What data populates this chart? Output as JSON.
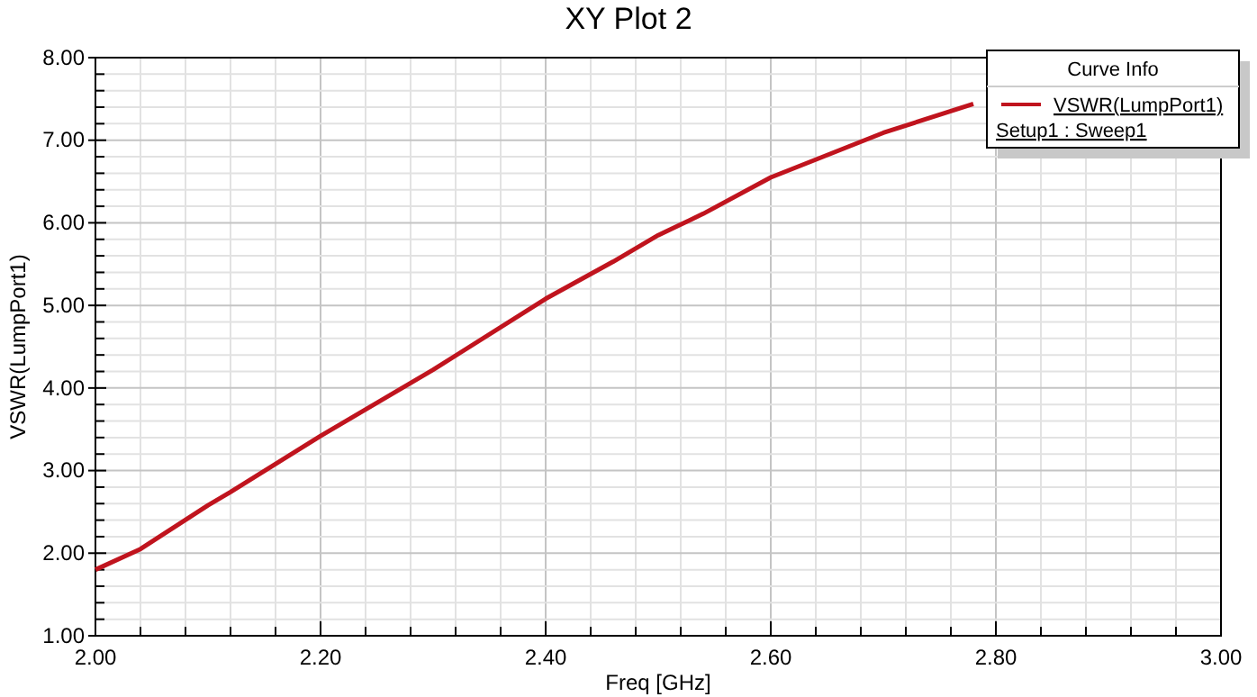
{
  "chart_data": {
    "type": "line",
    "title": "XY Plot 2",
    "xlabel": "Freq [GHz]",
    "ylabel": "VSWR(LumpPort1)",
    "legend_title": "Curve Info",
    "legend": "top right",
    "grid": true,
    "line_style": "solid",
    "marker": "none",
    "x": [
      2.0,
      2.04,
      2.1,
      2.12,
      2.2,
      2.3,
      2.4,
      2.46,
      2.5,
      2.54,
      2.6,
      2.7,
      2.78
    ],
    "annotations": [
      "Setup1 : Sweep1"
    ],
    "series": [
      {
        "name": "VSWR(LumpPort1)",
        "color": "#c0141e",
        "values": [
          1.8,
          2.05,
          2.58,
          2.74,
          3.42,
          4.22,
          5.08,
          5.53,
          5.85,
          6.11,
          6.55,
          7.09,
          7.44
        ]
      }
    ],
    "xlim": [
      2.0,
      3.0
    ],
    "ylim": [
      1.0,
      8.0
    ],
    "xticks": [
      {
        "value": 2.0,
        "label": "2.00"
      },
      {
        "value": 2.04,
        "label": null
      },
      {
        "value": 2.08,
        "label": null
      },
      {
        "value": 2.12,
        "label": null
      },
      {
        "value": 2.16,
        "label": null
      },
      {
        "value": 2.2,
        "label": "2.20"
      },
      {
        "value": 2.24,
        "label": null
      },
      {
        "value": 2.28,
        "label": null
      },
      {
        "value": 2.32,
        "label": null
      },
      {
        "value": 2.36,
        "label": null
      },
      {
        "value": 2.4,
        "label": "2.40"
      },
      {
        "value": 2.44,
        "label": null
      },
      {
        "value": 2.48,
        "label": null
      },
      {
        "value": 2.52,
        "label": null
      },
      {
        "value": 2.56,
        "label": null
      },
      {
        "value": 2.6,
        "label": "2.60"
      },
      {
        "value": 2.64,
        "label": null
      },
      {
        "value": 2.68,
        "label": null
      },
      {
        "value": 2.72,
        "label": null
      },
      {
        "value": 2.76,
        "label": null
      },
      {
        "value": 2.8,
        "label": "2.80"
      },
      {
        "value": 2.84,
        "label": null
      },
      {
        "value": 2.88,
        "label": null
      },
      {
        "value": 2.92,
        "label": null
      },
      {
        "value": 2.96,
        "label": null
      },
      {
        "value": 3.0,
        "label": "3.00"
      }
    ],
    "yticks": [
      {
        "value": 1,
        "label": "1.00"
      },
      {
        "value": 1.2,
        "label": null
      },
      {
        "value": 1.4,
        "label": null
      },
      {
        "value": 1.6,
        "label": null
      },
      {
        "value": 1.8,
        "label": null
      },
      {
        "value": 2,
        "label": "2.00"
      },
      {
        "value": 2.2,
        "label": null
      },
      {
        "value": 2.4,
        "label": null
      },
      {
        "value": 2.6,
        "label": null
      },
      {
        "value": 2.8,
        "label": null
      },
      {
        "value": 3,
        "label": "3.00"
      },
      {
        "value": 3.2,
        "label": null
      },
      {
        "value": 3.4,
        "label": null
      },
      {
        "value": 3.6,
        "label": null
      },
      {
        "value": 3.8,
        "label": null
      },
      {
        "value": 4,
        "label": "4.00"
      },
      {
        "value": 4.2,
        "label": null
      },
      {
        "value": 4.4,
        "label": null
      },
      {
        "value": 4.6,
        "label": null
      },
      {
        "value": 4.8,
        "label": null
      },
      {
        "value": 5,
        "label": "5.00"
      },
      {
        "value": 5.2,
        "label": null
      },
      {
        "value": 5.4,
        "label": null
      },
      {
        "value": 5.6,
        "label": null
      },
      {
        "value": 5.8,
        "label": null
      },
      {
        "value": 6,
        "label": "6.00"
      },
      {
        "value": 6.2,
        "label": null
      },
      {
        "value": 6.4,
        "label": null
      },
      {
        "value": 6.6,
        "label": null
      },
      {
        "value": 6.8,
        "label": null
      },
      {
        "value": 7,
        "label": "7.00"
      },
      {
        "value": 7.2,
        "label": null
      },
      {
        "value": 7.4,
        "label": null
      },
      {
        "value": 7.6,
        "label": null
      },
      {
        "value": 7.8,
        "label": null
      },
      {
        "value": 8,
        "label": "8.00"
      }
    ]
  }
}
